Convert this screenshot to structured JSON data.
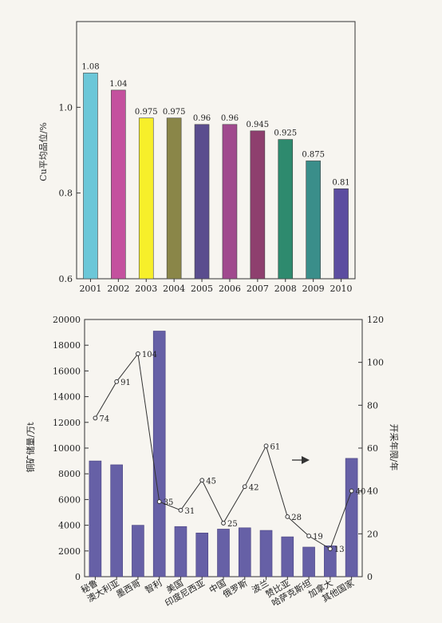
{
  "chart_data": [
    {
      "type": "bar",
      "ylabel": "Cu平均品位/%",
      "categories": [
        "2001",
        "2002",
        "2003",
        "2004",
        "2005",
        "2006",
        "2007",
        "2008",
        "2009",
        "2010"
      ],
      "values": [
        1.08,
        1.04,
        0.975,
        0.975,
        0.96,
        0.96,
        0.945,
        0.925,
        0.875,
        0.81
      ],
      "value_labels": [
        "1.08",
        "1.04",
        "0.975",
        "0.975",
        "0.96",
        "0.96",
        "0.945",
        "0.925",
        "0.875",
        "0.81"
      ],
      "colors": [
        "#6cc7d8",
        "#c4519e",
        "#f7ef2a",
        "#8a8648",
        "#5a4d8e",
        "#a04a8e",
        "#8e3f6e",
        "#2e8a6e",
        "#3a8e8a",
        "#5c4da0"
      ],
      "ylim": [
        0.6,
        1.2
      ],
      "yticks": [
        "0.6",
        "0.8",
        "1.0"
      ],
      "ytick_values": [
        0.6,
        0.8,
        1.0
      ],
      "grid": false
    },
    {
      "type": "bar+line",
      "ylabel": "铜矿储量/万t",
      "y2label": "开采年限/年",
      "categories": [
        "秘鲁",
        "澳大利亚",
        "墨西哥",
        "智利",
        "美国",
        "印度尼西亚",
        "中国",
        "俄罗斯",
        "波兰",
        "赞比亚",
        "哈萨克斯坦",
        "加拿大",
        "其他国家"
      ],
      "series": [
        {
          "type": "bar",
          "axis": "left",
          "color": "#6660a6",
          "values": [
            9000,
            8700,
            4000,
            19100,
            3900,
            3400,
            3700,
            3800,
            3600,
            3100,
            2300,
            2400,
            9200
          ]
        },
        {
          "type": "line",
          "axis": "right",
          "color": "#333333",
          "values": [
            74,
            91,
            104,
            35,
            31,
            45,
            25,
            42,
            61,
            28,
            19,
            13,
            40
          ],
          "labels": [
            "74",
            "91",
            "104",
            "35",
            "31",
            "45",
            "25",
            "42",
            "61",
            "28",
            "19",
            "13",
            "40"
          ]
        }
      ],
      "ylim": [
        0,
        20000
      ],
      "y2lim": [
        0,
        120
      ],
      "yticks": [
        "0",
        "2000",
        "4000",
        "6000",
        "8000",
        "10000",
        "12000",
        "14000",
        "16000",
        "18000",
        "20000"
      ],
      "y2ticks": [
        "0",
        "20",
        "40",
        "60",
        "80",
        "100",
        "120"
      ],
      "grid": false
    }
  ]
}
